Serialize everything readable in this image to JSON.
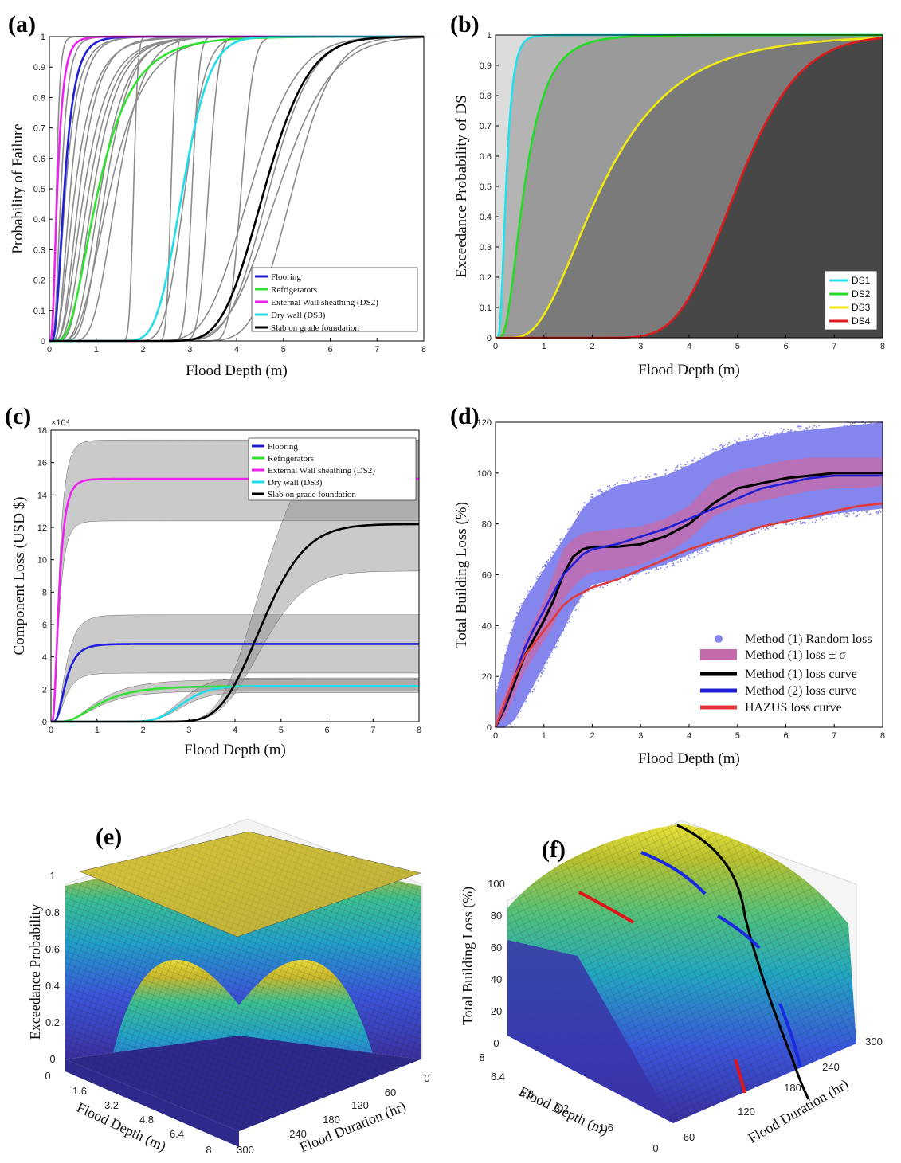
{
  "panels": {
    "a": "(a)",
    "b": "(b)",
    "c": "(c)",
    "d": "(d)",
    "e": "(e)",
    "f": "(f)"
  },
  "colors": {
    "flooring": "#1f1fd6",
    "refrigerators": "#33e133",
    "wall": "#ee22ee",
    "drywall": "#22dde8",
    "slab": "#000000",
    "gray": "#8c8c8c",
    "ds1": "#22e0ea",
    "ds2": "#22dd22",
    "ds3": "#f0ea10",
    "ds4": "#e01a1a",
    "random": "#8585ee",
    "sigma": "#c46aaa",
    "hazus": "#e03a3a"
  },
  "chart_data": [
    {
      "id": "a",
      "type": "line",
      "title": "",
      "xlabel": "Flood Depth (m)",
      "ylabel": "Probability of Failure",
      "xlim": [
        0,
        8
      ],
      "ylim": [
        0,
        1
      ],
      "xticks": [
        "0",
        "1",
        "2",
        "3",
        "4",
        "5",
        "6",
        "7",
        "8"
      ],
      "yticks": [
        "0",
        "0.1",
        "0.2",
        "0.3",
        "0.4",
        "0.5",
        "0.6",
        "0.7",
        "0.8",
        "0.9",
        "1"
      ],
      "series": [
        {
          "name": "Flooring",
          "type": "lognormal",
          "median": 0.32,
          "beta": 0.55
        },
        {
          "name": "Refrigerators",
          "type": "lognormal",
          "median": 1.05,
          "beta": 0.55
        },
        {
          "name": "External Wall sheathing (DS2)",
          "type": "lognormal",
          "median": 0.17,
          "beta": 0.6
        },
        {
          "name": "Dry wall (DS3)",
          "type": "lognormal",
          "median": 2.85,
          "beta": 0.16
        },
        {
          "name": "Slab on grade foundation",
          "type": "lognormal",
          "median": 4.6,
          "beta": 0.16
        }
      ],
      "background_curves": [
        {
          "median": 0.15,
          "beta": 0.4
        },
        {
          "median": 0.25,
          "beta": 0.5
        },
        {
          "median": 0.35,
          "beta": 0.6
        },
        {
          "median": 0.45,
          "beta": 0.5
        },
        {
          "median": 0.55,
          "beta": 0.6
        },
        {
          "median": 0.65,
          "beta": 0.5
        },
        {
          "median": 0.75,
          "beta": 0.55
        },
        {
          "median": 0.85,
          "beta": 0.5
        },
        {
          "median": 0.95,
          "beta": 0.45
        },
        {
          "median": 1.1,
          "beta": 0.4
        },
        {
          "median": 1.2,
          "beta": 0.35
        },
        {
          "median": 1.3,
          "beta": 0.45
        },
        {
          "median": 1.45,
          "beta": 0.3
        },
        {
          "median": 1.8,
          "beta": 0.04
        },
        {
          "median": 2.6,
          "beta": 0.03
        },
        {
          "median": 2.9,
          "beta": 0.12
        },
        {
          "median": 3.05,
          "beta": 0.04
        },
        {
          "median": 3.4,
          "beta": 0.05
        },
        {
          "median": 4.1,
          "beta": 0.05
        },
        {
          "median": 4.3,
          "beta": 0.18
        },
        {
          "median": 4.7,
          "beta": 0.15
        },
        {
          "median": 4.9,
          "beta": 0.18
        },
        {
          "median": 5.2,
          "beta": 0.13
        }
      ],
      "legend_position": "lower-right"
    },
    {
      "id": "b",
      "type": "area",
      "xlabel": "Flood Depth (m)",
      "ylabel": "Exceedance Probability of DS",
      "xlim": [
        0,
        8
      ],
      "ylim": [
        0,
        1
      ],
      "xticks": [
        "0",
        "1",
        "2",
        "3",
        "4",
        "5",
        "6",
        "7",
        "8"
      ],
      "yticks": [
        "0",
        "0.1",
        "0.2",
        "0.3",
        "0.4",
        "0.5",
        "0.6",
        "0.7",
        "0.8",
        "0.9",
        "1"
      ],
      "series": [
        {
          "name": "DS1",
          "type": "lognormal",
          "median": 0.22,
          "beta": 0.5
        },
        {
          "name": "DS2",
          "type": "lognormal",
          "median": 0.6,
          "beta": 0.6
        },
        {
          "name": "DS3",
          "type": "lognormal",
          "median": 2.2,
          "beta": 0.55
        },
        {
          "name": "DS4",
          "type": "lognormal",
          "median": 5.0,
          "beta": 0.2
        }
      ],
      "fills": [
        "#dcdcdc",
        "#b4b4b4",
        "#9a9a9a",
        "#7a7a7a",
        "#474747"
      ],
      "legend_position": "lower-right"
    },
    {
      "id": "c",
      "type": "line",
      "xlabel": "Flood Depth (m)",
      "ylabel": "Component Loss (USD $)",
      "multiplier": "×10⁴",
      "xlim": [
        0,
        8
      ],
      "ylim": [
        0,
        18
      ],
      "xticks": [
        "0",
        "1",
        "2",
        "3",
        "4",
        "5",
        "6",
        "7",
        "8"
      ],
      "yticks": [
        "0",
        "2",
        "4",
        "6",
        "8",
        "10",
        "12",
        "14",
        "16",
        "18"
      ],
      "series": [
        {
          "name": "Flooring",
          "plateau": 4.8,
          "median": 0.32,
          "beta": 0.55,
          "band": [
            3.0,
            6.6
          ]
        },
        {
          "name": "Refrigerators",
          "plateau": 2.2,
          "median": 1.05,
          "beta": 0.55,
          "band": [
            1.9,
            2.6
          ]
        },
        {
          "name": "External Wall sheathing (DS2)",
          "plateau": 15.0,
          "median": 0.17,
          "beta": 0.6,
          "band": [
            12.4,
            17.4
          ]
        },
        {
          "name": "Dry wall (DS3)",
          "plateau": 2.2,
          "median": 2.85,
          "beta": 0.16,
          "band": [
            1.8,
            2.7
          ]
        },
        {
          "name": "Slab on grade foundation",
          "plateau": 12.2,
          "median": 4.6,
          "beta": 0.16,
          "band": [
            9.3,
            17.4
          ]
        }
      ],
      "legend_position": "top-right"
    },
    {
      "id": "d",
      "type": "scatter",
      "xlabel": "Flood Depth (m)",
      "ylabel": "Total Building Loss (%)",
      "xlim": [
        0,
        8
      ],
      "ylim": [
        0,
        120
      ],
      "xticks": [
        "0",
        "1",
        "2",
        "3",
        "4",
        "5",
        "6",
        "7",
        "8"
      ],
      "yticks": [
        "0",
        "20",
        "40",
        "60",
        "80",
        "100",
        "120"
      ],
      "x": [
        0,
        0.2,
        0.4,
        0.6,
        0.8,
        1.0,
        1.2,
        1.4,
        1.6,
        1.8,
        2.0,
        2.5,
        3.0,
        3.5,
        4.0,
        4.5,
        5.0,
        5.5,
        6.0,
        6.5,
        7.0,
        7.5,
        8.0
      ],
      "series": [
        {
          "name": "Method (1) Random loss",
          "upper": [
            12,
            28,
            42,
            50,
            56,
            62,
            68,
            74,
            80,
            86,
            90,
            95,
            97,
            99,
            103,
            108,
            112,
            114,
            116,
            117,
            118,
            119,
            120
          ],
          "lower": [
            0,
            0,
            3,
            10,
            17,
            24,
            31,
            38,
            46,
            52,
            56,
            58,
            61,
            64,
            68,
            72,
            75,
            79,
            81,
            82,
            84,
            85,
            86
          ]
        },
        {
          "name": "Method (1) loss ± σ",
          "upper": [
            4,
            13,
            24,
            34,
            42,
            50,
            60,
            70,
            74,
            76,
            77,
            78,
            79,
            82,
            87,
            97,
            101,
            103,
            105,
            106,
            106,
            106,
            106
          ],
          "lower": [
            0,
            4,
            13,
            22,
            28,
            34,
            40,
            50,
            55,
            59,
            61,
            62,
            64,
            68,
            74,
            83,
            87,
            89,
            91,
            93,
            94,
            94,
            95
          ]
        },
        {
          "name": "Method (1) loss curve",
          "values": [
            0,
            8,
            18,
            28,
            35,
            42,
            50,
            60,
            67,
            70,
            71,
            71,
            72,
            75,
            80,
            88,
            94,
            96,
            98,
            99,
            100,
            100,
            100
          ]
        },
        {
          "name": "Method (2) loss curve",
          "values": [
            0,
            9,
            20,
            31,
            39,
            46,
            53,
            60,
            64,
            68,
            70,
            72,
            75,
            78,
            82,
            86,
            90,
            94,
            96,
            98,
            99,
            99,
            99
          ]
        },
        {
          "name": "HAZUS loss curve",
          "values": [
            0,
            10,
            20,
            28,
            33,
            38,
            43,
            48,
            51,
            53,
            55,
            58,
            62,
            66,
            70,
            73,
            76,
            79,
            81,
            83,
            85,
            87,
            88
          ]
        }
      ],
      "legend_position": "lower-right"
    },
    {
      "id": "e",
      "type": "heatmap",
      "zlabel": "Exceedance Probability",
      "xlabel": "Flood Depth (m)",
      "ylabel": "Flood Duration (hr)",
      "zticks": [
        "0",
        "0.2",
        "0.4",
        "0.6",
        "0.8",
        "1"
      ],
      "xticks": [
        "0",
        "1.6",
        "3.2",
        "4.8",
        "6.4",
        "8"
      ],
      "yticks": [
        "0",
        "60",
        "120",
        "180",
        "240",
        "300"
      ]
    },
    {
      "id": "f",
      "type": "heatmap",
      "zlabel": "Total Building Loss (%)",
      "xlabel": "Flood Depth (m)",
      "ylabel": "Flood Duration (hr)",
      "zticks": [
        "0",
        "20",
        "40",
        "60",
        "80",
        "100"
      ],
      "xticks": [
        "8",
        "6.4",
        "4.8",
        "3.2",
        "1.6",
        "0"
      ],
      "yticks": [
        "60",
        "120",
        "180",
        "240",
        "300"
      ]
    }
  ]
}
